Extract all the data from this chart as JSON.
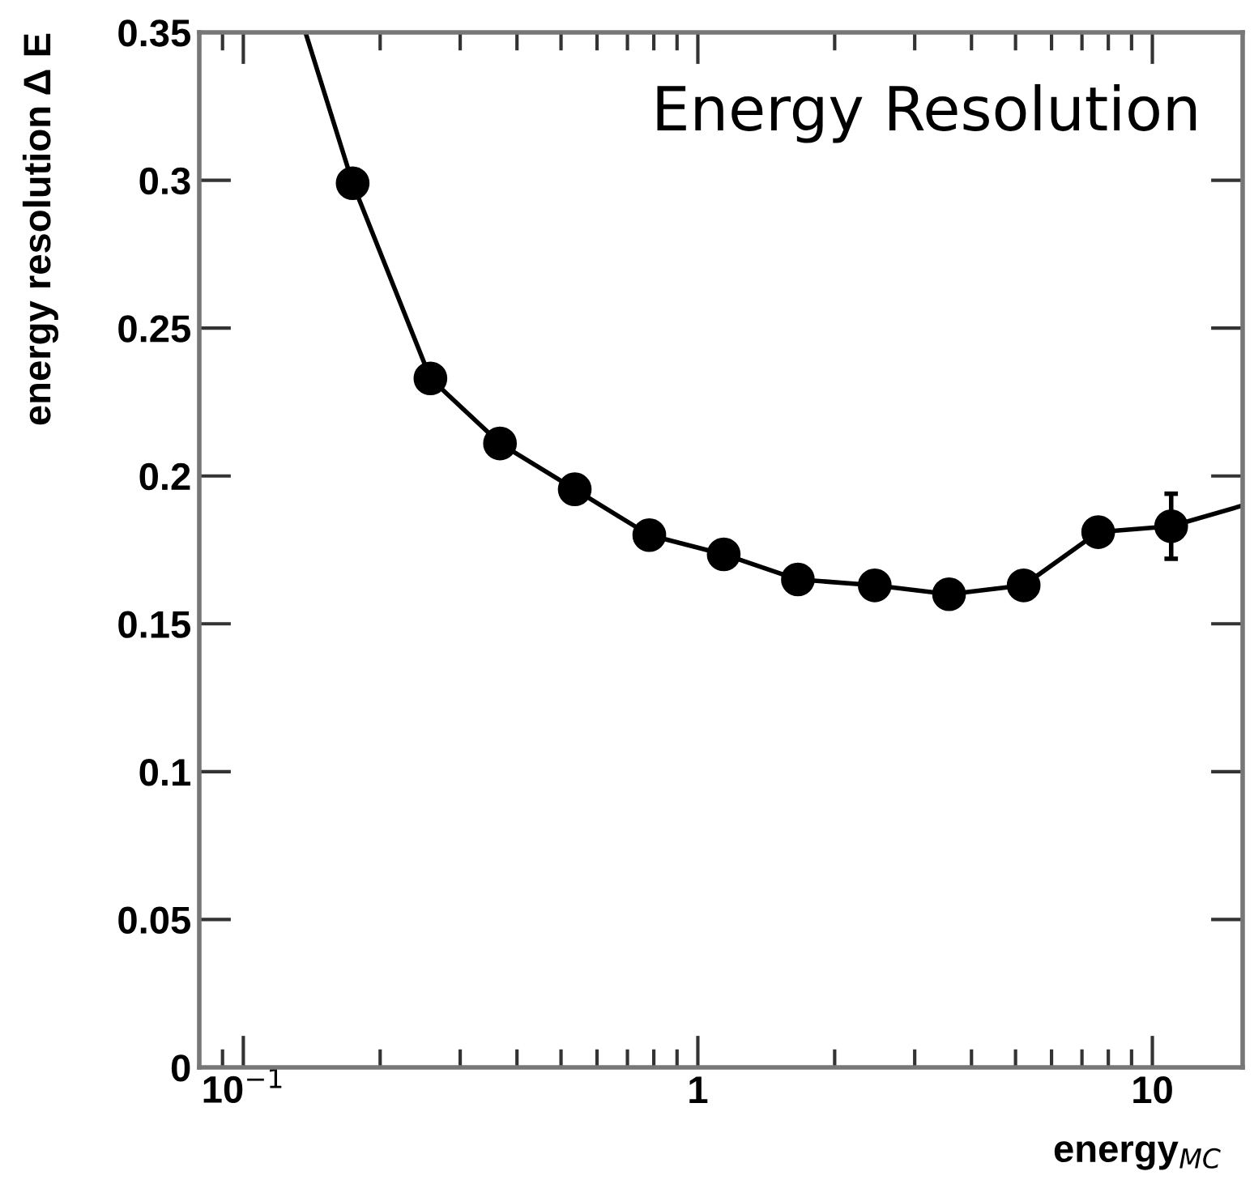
{
  "chart_data": {
    "type": "line",
    "title": "Energy Resolution",
    "xlabel": "energy$_{MC}$",
    "ylabel": "energy resolution Δ E",
    "log": "x",
    "xlim": [
      0.08,
      15.8
    ],
    "xticks": [
      {
        "value": 0.1,
        "label": "10$^{−1}$"
      },
      1,
      10
    ],
    "ylim": [
      0,
      0.35
    ],
    "yticks": [
      0,
      0.05,
      0.1,
      0.15,
      0.2,
      0.25,
      0.3,
      0.35
    ],
    "grid": false,
    "series": [
      {
        "color": "#000000",
        "marker": "none",
        "line_style": "solid",
        "x": [
          0.137,
          0.174,
          0.258,
          0.367,
          0.536,
          0.782,
          1.14,
          1.66,
          2.45,
          3.57,
          5.21,
          7.6,
          11.0,
          15.8
        ],
        "values": [
          0.35,
          0.299,
          0.233,
          0.211,
          0.1955,
          0.18,
          0.1735,
          0.165,
          0.163,
          0.16,
          0.163,
          0.181,
          0.183,
          0.19
        ]
      },
      {
        "type": "scatter",
        "marker": "circle",
        "color": "#000000",
        "x": [
          0.174,
          0.258,
          0.367,
          0.536,
          0.782,
          1.14,
          1.66,
          2.45,
          3.57,
          5.21,
          7.6,
          11.0
        ],
        "values": [
          0.299,
          0.233,
          0.211,
          0.1955,
          0.18,
          0.1735,
          0.165,
          0.163,
          0.16,
          0.163,
          0.181,
          0.183
        ],
        "errors": [
          null,
          null,
          null,
          null,
          null,
          null,
          null,
          null,
          null,
          null,
          null,
          [
            0.172,
            0.194
          ]
        ]
      }
    ]
  }
}
